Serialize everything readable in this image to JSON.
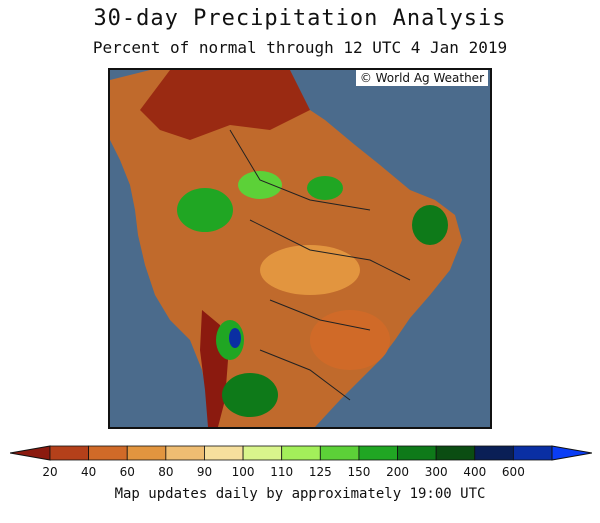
{
  "title": "30-day Precipitation Analysis",
  "subtitle": "Percent of normal through 12 UTC 4 Jan 2019",
  "copyright": "© World Ag Weather",
  "footer": "Map updates daily by approximately 19:00 UTC",
  "colors": {
    "ocean": "#4b6b8c",
    "bins": [
      "#8b1a0f",
      "#b4401a",
      "#d06a28",
      "#e2953f",
      "#efbd72",
      "#f6df9d",
      "#d9f58c",
      "#a3ef5a",
      "#5cd138",
      "#20a623",
      "#0e7a19",
      "#0b4d12",
      "#0a1f56",
      "#0a2fa3",
      "#0a3df5"
    ]
  },
  "legend": {
    "ticks": [
      "20",
      "40",
      "60",
      "80",
      "90",
      "100",
      "110",
      "125",
      "150",
      "200",
      "300",
      "400",
      "600"
    ]
  }
}
